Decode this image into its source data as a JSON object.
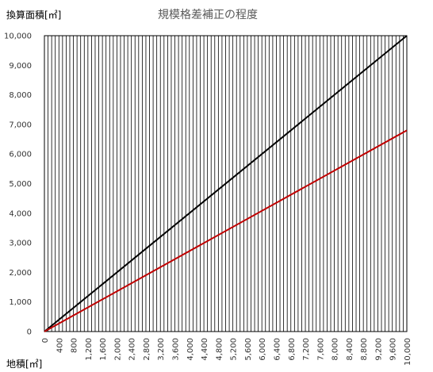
{
  "chart_data": {
    "type": "line",
    "title": "規模格差補正の程度",
    "xlabel": "地積[㎡]",
    "ylabel": "換算面積[㎡]",
    "xlim": [
      0,
      10000
    ],
    "ylim": [
      0,
      10000
    ],
    "y_ticks": [
      "0",
      "1,000",
      "2,000",
      "3,000",
      "4,000",
      "5,000",
      "6,000",
      "7,000",
      "8,000",
      "9,000",
      "10,000"
    ],
    "y_tick_values": [
      0,
      1000,
      2000,
      3000,
      4000,
      5000,
      6000,
      7000,
      8000,
      9000,
      10000
    ],
    "x_ticks": [
      "0",
      "400",
      "800",
      "1,200",
      "1,600",
      "2,000",
      "2,400",
      "2,800",
      "3,200",
      "3,600",
      "4,000",
      "4,400",
      "4,800",
      "5,200",
      "5,600",
      "6,000",
      "6,400",
      "6,800",
      "7,200",
      "7,600",
      "8,000",
      "8,400",
      "8,800",
      "9,200",
      "9,600",
      "10,000"
    ],
    "x_tick_values": [
      0,
      400,
      800,
      1200,
      1600,
      2000,
      2400,
      2800,
      3200,
      3600,
      4000,
      4400,
      4800,
      5200,
      5600,
      6000,
      6400,
      6800,
      7200,
      7600,
      8000,
      8400,
      8800,
      9200,
      9600,
      10000
    ],
    "grid": "vertical every 100 ㎡",
    "legend": "none",
    "series": [
      {
        "color": "#000000",
        "x": [
          0,
          10000
        ],
        "y": [
          0,
          10000
        ]
      },
      {
        "color": "#c00000",
        "x": [
          0,
          10000
        ],
        "y": [
          0,
          6800
        ]
      }
    ]
  }
}
